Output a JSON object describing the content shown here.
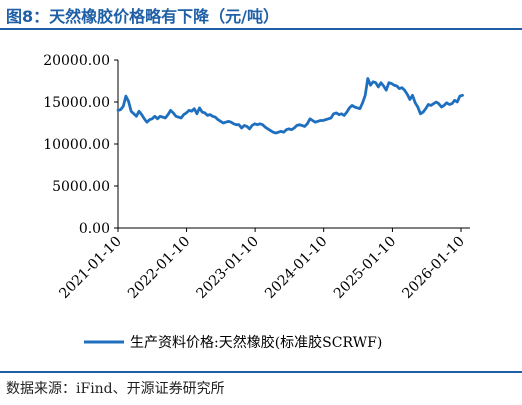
{
  "figure": {
    "title": "图8：天然橡胶价格略有下降（元/吨）",
    "source": "数据来源：iFind、开源证券研究所"
  },
  "chart_data": {
    "type": "line",
    "xlabel": "",
    "ylabel": "",
    "ylim": [
      0,
      20000
    ],
    "yticks": [
      "0.00",
      "5000.00",
      "10000.00",
      "15000.00",
      "20000.00"
    ],
    "xticks": [
      "2021-01-10",
      "2022-01-10",
      "2023-01-10",
      "2024-01-10",
      "2025-01-10",
      "2026-01-10"
    ],
    "grid": false,
    "legend_position": "bottom",
    "series": [
      {
        "name": "生产资料价格:天然橡胶(标准胶SCRWF)",
        "color": "#1f6fbf",
        "points": [
          [
            "2021-01-10",
            14000
          ],
          [
            "2021-01-24",
            14100
          ],
          [
            "2021-02-07",
            14500
          ],
          [
            "2021-02-21",
            15700
          ],
          [
            "2021-03-07",
            15100
          ],
          [
            "2021-03-21",
            13900
          ],
          [
            "2021-04-04",
            13600
          ],
          [
            "2021-04-18",
            13300
          ],
          [
            "2021-05-02",
            13900
          ],
          [
            "2021-05-16",
            13500
          ],
          [
            "2021-05-30",
            13000
          ],
          [
            "2021-06-13",
            12600
          ],
          [
            "2021-06-27",
            12900
          ],
          [
            "2021-07-11",
            13000
          ],
          [
            "2021-07-25",
            13300
          ],
          [
            "2021-08-08",
            13000
          ],
          [
            "2021-08-22",
            13300
          ],
          [
            "2021-09-05",
            13200
          ],
          [
            "2021-09-19",
            13100
          ],
          [
            "2021-10-03",
            13500
          ],
          [
            "2021-10-17",
            14000
          ],
          [
            "2021-10-31",
            13700
          ],
          [
            "2021-11-14",
            13300
          ],
          [
            "2021-11-28",
            13200
          ],
          [
            "2021-12-12",
            13100
          ],
          [
            "2021-12-26",
            13500
          ],
          [
            "2022-01-09",
            13700
          ],
          [
            "2022-01-23",
            14000
          ],
          [
            "2022-02-06",
            13900
          ],
          [
            "2022-02-20",
            14200
          ],
          [
            "2022-03-06",
            13600
          ],
          [
            "2022-03-20",
            14300
          ],
          [
            "2022-04-03",
            13800
          ],
          [
            "2022-04-17",
            13700
          ],
          [
            "2022-05-01",
            13400
          ],
          [
            "2022-05-15",
            13500
          ],
          [
            "2022-05-29",
            13300
          ],
          [
            "2022-06-12",
            13200
          ],
          [
            "2022-06-26",
            12900
          ],
          [
            "2022-07-10",
            12700
          ],
          [
            "2022-07-24",
            12500
          ],
          [
            "2022-08-07",
            12600
          ],
          [
            "2022-08-21",
            12700
          ],
          [
            "2022-09-04",
            12600
          ],
          [
            "2022-09-18",
            12400
          ],
          [
            "2022-10-02",
            12300
          ],
          [
            "2022-10-16",
            12300
          ],
          [
            "2022-10-30",
            11900
          ],
          [
            "2022-11-13",
            12200
          ],
          [
            "2022-11-27",
            12100
          ],
          [
            "2022-12-11",
            11800
          ],
          [
            "2022-12-25",
            12200
          ],
          [
            "2023-01-08",
            12400
          ],
          [
            "2023-01-22",
            12300
          ],
          [
            "2023-02-05",
            12400
          ],
          [
            "2023-02-19",
            12300
          ],
          [
            "2023-03-05",
            12000
          ],
          [
            "2023-03-19",
            11800
          ],
          [
            "2023-04-02",
            11600
          ],
          [
            "2023-04-16",
            11400
          ],
          [
            "2023-04-30",
            11300
          ],
          [
            "2023-05-14",
            11400
          ],
          [
            "2023-05-28",
            11500
          ],
          [
            "2023-06-11",
            11400
          ],
          [
            "2023-06-25",
            11700
          ],
          [
            "2023-07-09",
            11800
          ],
          [
            "2023-07-23",
            11700
          ],
          [
            "2023-08-06",
            11900
          ],
          [
            "2023-08-20",
            12200
          ],
          [
            "2023-09-03",
            12300
          ],
          [
            "2023-09-17",
            12200
          ],
          [
            "2023-10-01",
            12100
          ],
          [
            "2023-10-15",
            12400
          ],
          [
            "2023-10-29",
            13000
          ],
          [
            "2023-11-12",
            12800
          ],
          [
            "2023-11-26",
            12600
          ],
          [
            "2023-12-10",
            12700
          ],
          [
            "2023-12-24",
            12800
          ],
          [
            "2024-01-07",
            12800
          ],
          [
            "2024-01-21",
            12900
          ],
          [
            "2024-02-04",
            13000
          ],
          [
            "2024-02-18",
            13100
          ],
          [
            "2024-03-03",
            13600
          ],
          [
            "2024-03-17",
            13700
          ],
          [
            "2024-03-31",
            13500
          ],
          [
            "2024-04-14",
            13600
          ],
          [
            "2024-04-28",
            13400
          ],
          [
            "2024-05-12",
            13800
          ],
          [
            "2024-05-26",
            14300
          ],
          [
            "2024-06-09",
            14600
          ],
          [
            "2024-06-23",
            14400
          ],
          [
            "2024-07-07",
            14300
          ],
          [
            "2024-07-21",
            14200
          ],
          [
            "2024-08-04",
            14900
          ],
          [
            "2024-08-18",
            15800
          ],
          [
            "2024-09-01",
            17800
          ],
          [
            "2024-09-15",
            17000
          ],
          [
            "2024-09-29",
            17400
          ],
          [
            "2024-10-13",
            17300
          ],
          [
            "2024-10-27",
            16800
          ],
          [
            "2024-11-10",
            17300
          ],
          [
            "2024-11-24",
            16900
          ],
          [
            "2024-12-08",
            16400
          ],
          [
            "2024-12-22",
            17300
          ],
          [
            "2025-01-05",
            17200
          ],
          [
            "2025-01-19",
            17000
          ],
          [
            "2025-02-02",
            16900
          ],
          [
            "2025-02-16",
            16600
          ],
          [
            "2025-03-02",
            16700
          ],
          [
            "2025-03-16",
            16400
          ],
          [
            "2025-03-30",
            15900
          ],
          [
            "2025-04-13",
            15300
          ],
          [
            "2025-04-27",
            15800
          ],
          [
            "2025-05-11",
            14900
          ],
          [
            "2025-05-25",
            14400
          ],
          [
            "2025-06-08",
            13600
          ],
          [
            "2025-06-22",
            13800
          ],
          [
            "2025-07-06",
            14200
          ],
          [
            "2025-07-20",
            14700
          ],
          [
            "2025-08-03",
            14600
          ],
          [
            "2025-08-17",
            14800
          ],
          [
            "2025-08-31",
            15000
          ],
          [
            "2025-09-14",
            14800
          ],
          [
            "2025-09-28",
            14400
          ],
          [
            "2025-10-12",
            14600
          ],
          [
            "2025-10-26",
            14900
          ],
          [
            "2025-11-09",
            14700
          ],
          [
            "2025-11-23",
            14800
          ],
          [
            "2025-12-07",
            15200
          ],
          [
            "2025-12-21",
            15000
          ],
          [
            "2026-01-04",
            15700
          ],
          [
            "2026-01-18",
            15800
          ]
        ]
      }
    ]
  }
}
